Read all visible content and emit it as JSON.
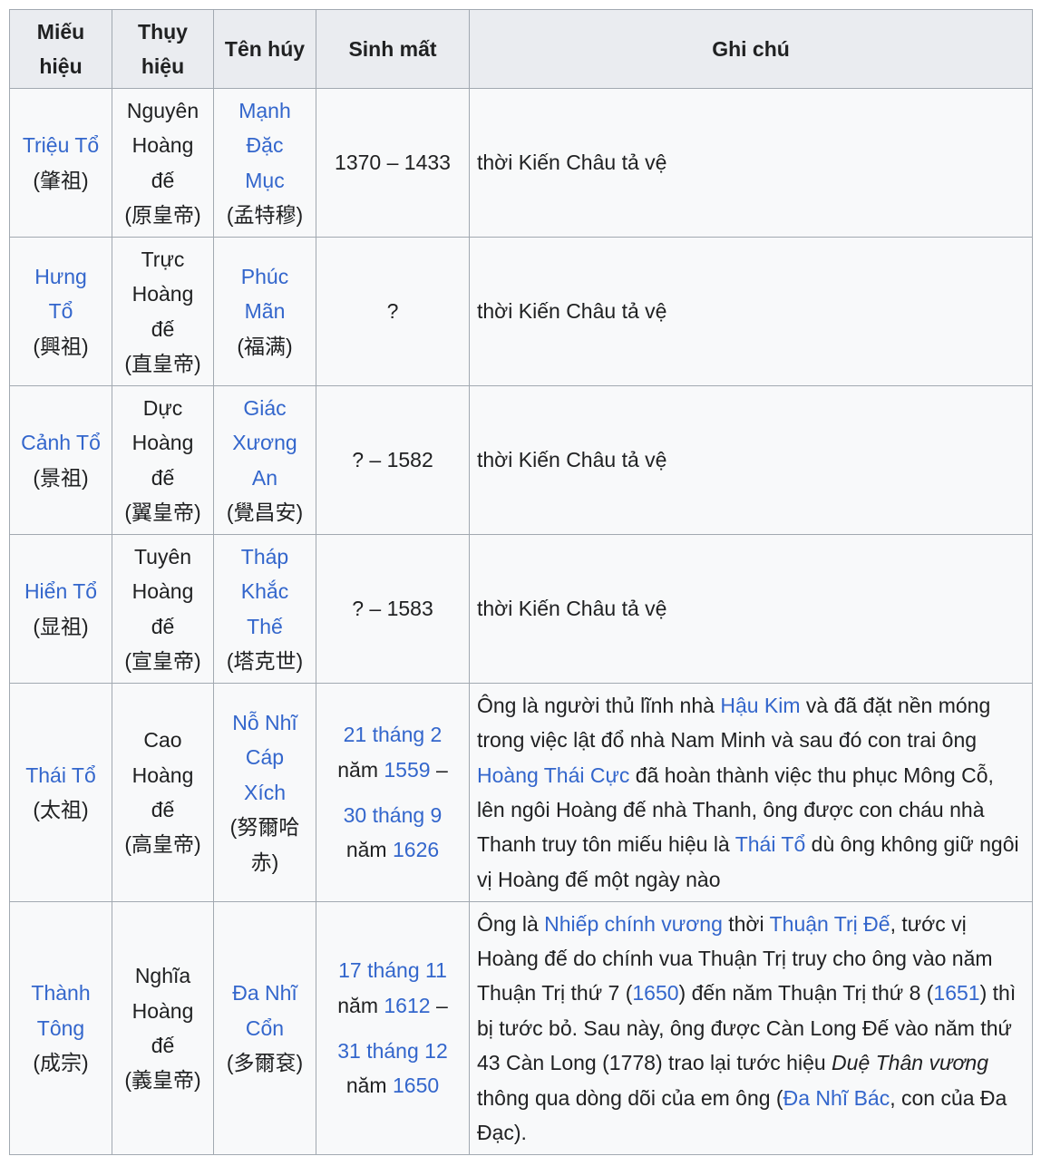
{
  "headers": {
    "mieu_hieu": [
      "Miếu",
      "hiệu"
    ],
    "thuy_hieu": [
      "Thụy",
      "hiệu"
    ],
    "ten_huy": "Tên húy",
    "sinh_mat": "Sinh mất",
    "ghi_chu": "Ghi chú"
  },
  "rows": [
    {
      "mieu_lines": [
        "Triệu Tổ"
      ],
      "mieu_han": "(肇祖)",
      "thuy_lines": [
        "Nguyên",
        "Hoàng",
        "đế"
      ],
      "thuy_han": "(原皇帝)",
      "ten_lines": [
        "Mạnh",
        "Đặc",
        "Mục"
      ],
      "ten_han": "(孟特穆)",
      "sinh_mat": "1370 – 1433",
      "note": "thời Kiến Châu tả vệ"
    },
    {
      "mieu_lines": [
        "Hưng",
        "Tổ"
      ],
      "mieu_han": "(興祖)",
      "thuy_lines": [
        "Trực",
        "Hoàng",
        "đế"
      ],
      "thuy_han": "(直皇帝)",
      "ten_lines": [
        "Phúc",
        "Mãn"
      ],
      "ten_han": "(福满)",
      "sinh_mat": "?",
      "note": "thời Kiến Châu tả vệ"
    },
    {
      "mieu_lines": [
        "Cảnh Tổ"
      ],
      "mieu_han": "(景祖)",
      "thuy_lines": [
        "Dực",
        "Hoàng",
        "đế"
      ],
      "thuy_han": "(翼皇帝)",
      "ten_lines": [
        "Giác",
        "Xương",
        "An"
      ],
      "ten_han": "(覺昌安)",
      "sinh_mat": "? – 1582",
      "note": "thời Kiến Châu tả vệ"
    },
    {
      "mieu_lines": [
        "Hiển Tổ"
      ],
      "mieu_han": "(显祖)",
      "thuy_lines": [
        "Tuyên",
        "Hoàng",
        "đế"
      ],
      "thuy_han": "(宣皇帝)",
      "ten_lines": [
        "Tháp",
        "Khắc",
        "Thế"
      ],
      "ten_han": "(塔克世)",
      "sinh_mat": "? – 1583",
      "note": "thời Kiến Châu tả vệ"
    },
    {
      "mieu_lines": [
        "Thái Tổ"
      ],
      "mieu_han": "(太祖)",
      "thuy_lines": [
        "Cao",
        "Hoàng",
        "đế"
      ],
      "thuy_han": "(高皇帝)",
      "ten_lines": [
        "Nỗ Nhĩ",
        "Cáp",
        "Xích"
      ],
      "ten_han_lines": [
        "(努爾哈",
        "赤)"
      ],
      "birth_date": "21 tháng 2",
      "birth_prefix": "năm",
      "birth_year": "1559",
      "dash": "–",
      "death_date": "30 tháng 9",
      "death_prefix": "năm",
      "death_year": "1626",
      "note_parts": {
        "p1": "Ông là người thủ lĩnh nhà ",
        "l1": "Hậu Kim",
        "p2": " và đã đặt nền móng trong việc lật đổ nhà Nam Minh và sau đó con trai ông ",
        "l2": "Hoàng Thái Cực",
        "p3": " đã hoàn thành việc thu phục Mông Cỗ, lên ngôi Hoàng đế nhà Thanh, ông được con cháu nhà Thanh truy tôn miếu hiệu là ",
        "l3": "Thái Tổ",
        "p4": " dù ông không giữ ngôi vị Hoàng đế một ngày nào"
      }
    },
    {
      "mieu_lines": [
        "Thành",
        "Tông"
      ],
      "mieu_han": "(成宗)",
      "thuy_lines": [
        "Nghĩa",
        "Hoàng",
        "đế"
      ],
      "thuy_han": "(義皇帝)",
      "ten_lines": [
        "Đa Nhĩ",
        "Cổn"
      ],
      "ten_han": "(多爾袞)",
      "birth_date": "17 tháng 11",
      "birth_prefix": "năm",
      "birth_year": "1612",
      "dash": "–",
      "death_date": "31 tháng 12",
      "death_prefix": "năm",
      "death_year": "1650",
      "note_parts": {
        "p1": "Ông là ",
        "l1": "Nhiếp chính vương",
        "p2": " thời ",
        "l2": "Thuận Trị Đế",
        "p3": ", tước vị Hoàng đế do chính vua Thuận Trị truy cho ông vào năm Thuận Trị thứ 7 (",
        "l3": "1650",
        "p4": ") đến năm Thuận Trị thứ 8 (",
        "l4": "1651",
        "p5": ") thì bị tước bỏ. Sau này, ông được Càn Long Đế vào năm thứ 43 Càn Long (1778) trao lại tước hiệu ",
        "i1": "Duệ Thân vương",
        "p6": " thông qua dòng dõi của em ông (",
        "l5": "Đa Nhĩ Bác",
        "p7": ", con của Đa Đạc)."
      }
    }
  ]
}
